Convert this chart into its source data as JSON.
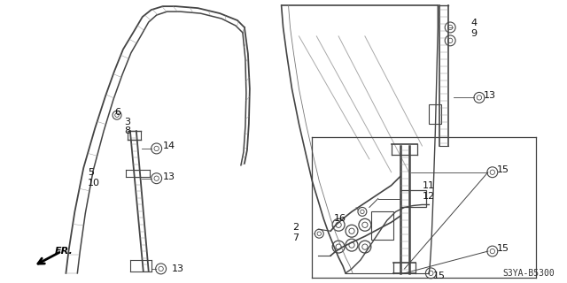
{
  "bg_color": "#ffffff",
  "part_code": "S3YA-B5300",
  "dgray": "#444444",
  "mgray": "#777777",
  "lgray": "#aaaaaa"
}
